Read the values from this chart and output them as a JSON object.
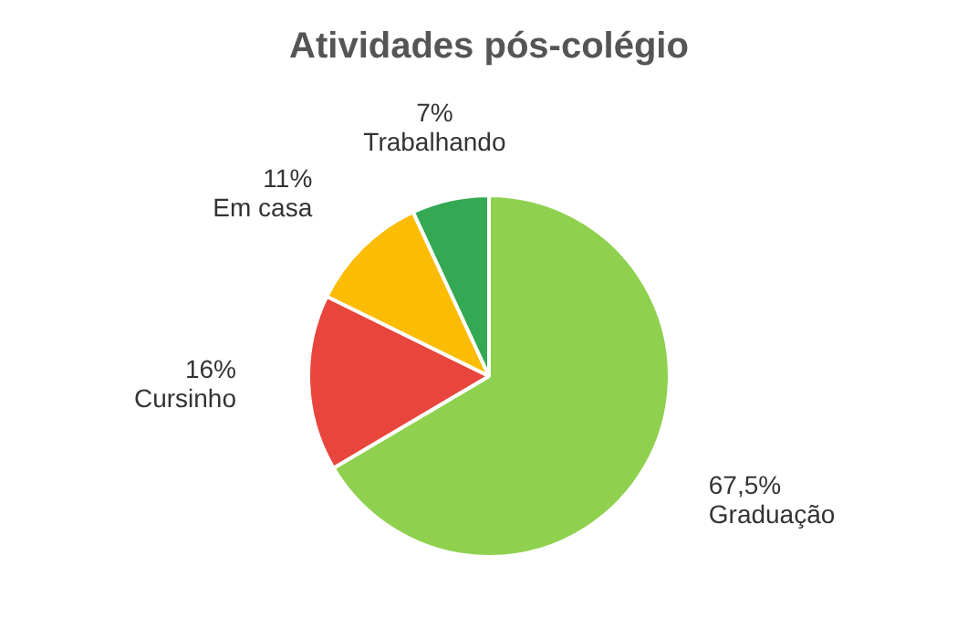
{
  "chart_data": {
    "type": "pie",
    "title": "Atividades pós-colégio",
    "categories": [
      "Graduação",
      "Cursinho",
      "Em casa",
      "Trabalhando"
    ],
    "values": [
      67.5,
      16,
      11,
      7
    ],
    "value_labels": [
      "67,5%",
      "16%",
      "11%",
      "7%"
    ],
    "colors": [
      "#8fd14f",
      "#e8453c",
      "#fbbc04",
      "#34a853"
    ],
    "legend": false
  }
}
